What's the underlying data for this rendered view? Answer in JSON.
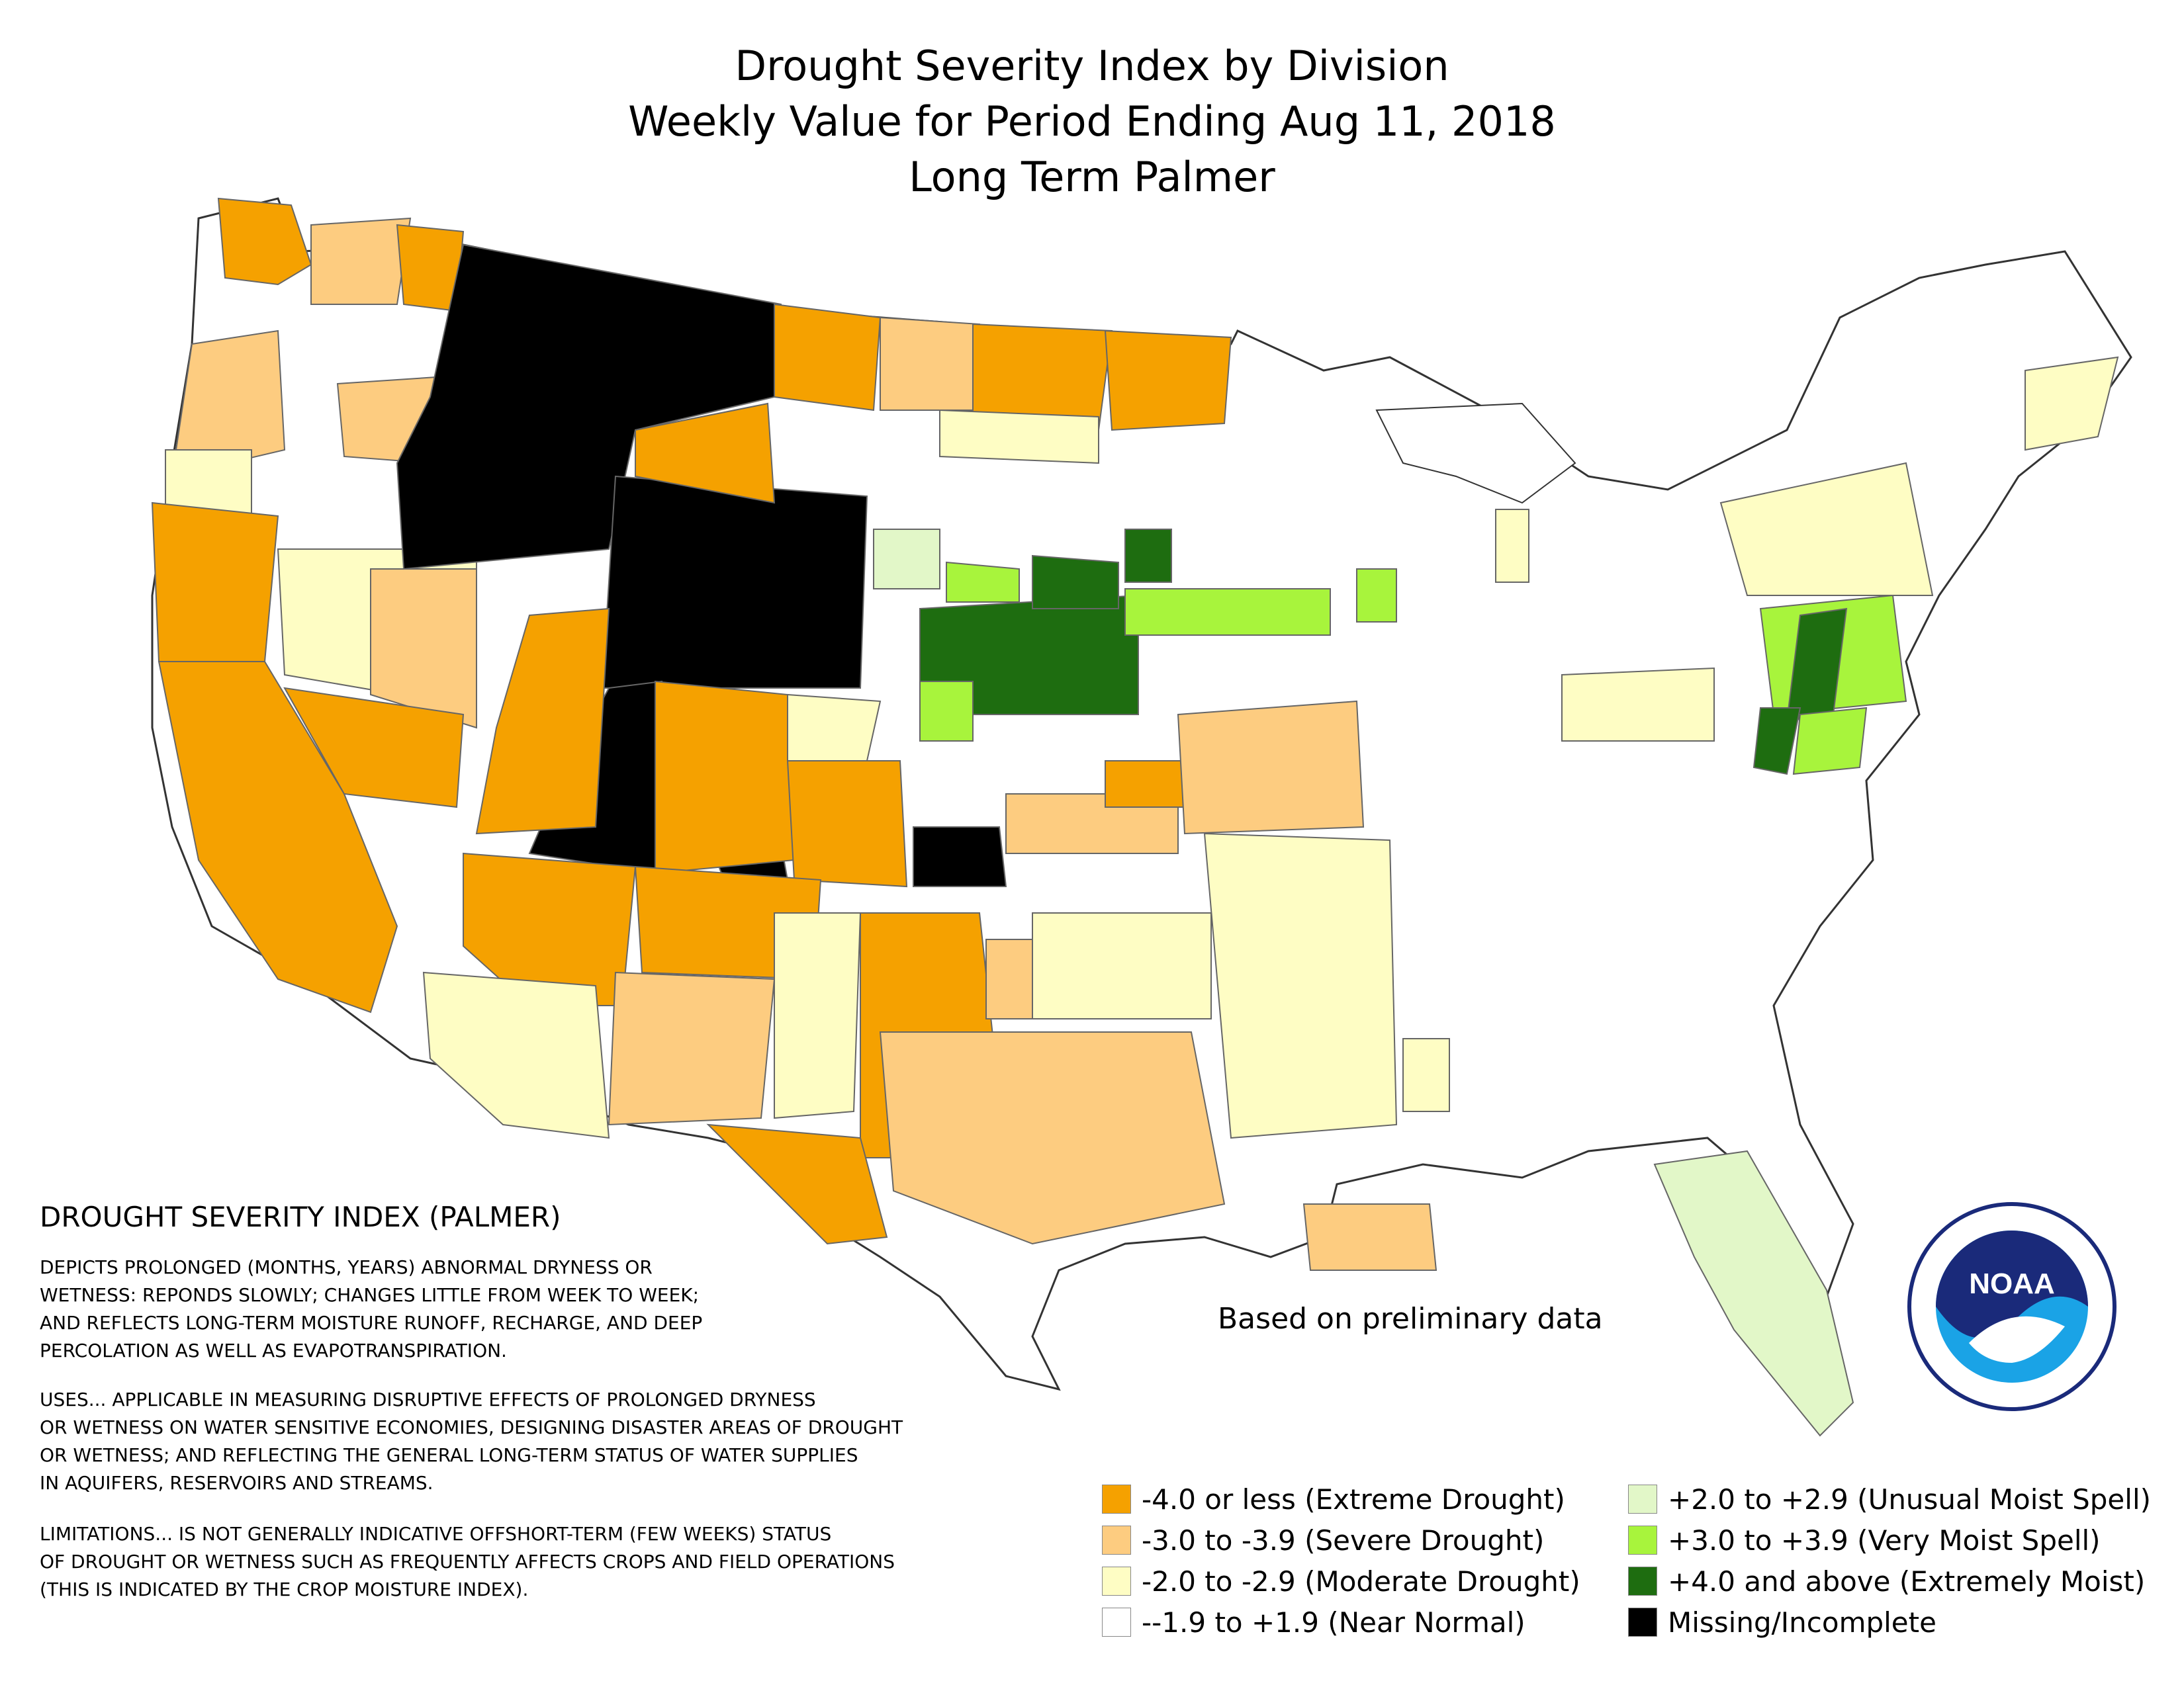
{
  "title": {
    "line1": "Drought Severity Index by Division",
    "line2": "Weekly Value for Period Ending Aug 11, 2018",
    "line3": "Long Term Palmer"
  },
  "description": {
    "heading": "DROUGHT SEVERITY INDEX (PALMER)",
    "para1": [
      "DEPICTS PROLONGED (MONTHS, YEARS) ABNORMAL DRYNESS OR",
      "WETNESS: REPONDS SLOWLY; CHANGES LITTLE FROM WEEK TO WEEK;",
      "AND REFLECTS LONG-TERM MOISTURE RUNOFF, RECHARGE, AND DEEP",
      "PERCOLATION AS WELL AS EVAPOTRANSPIRATION."
    ],
    "para2": [
      "USES... APPLICABLE IN MEASURING DISRUPTIVE EFFECTS OF PROLONGED DRYNESS",
      "OR WETNESS ON WATER SENSITIVE ECONOMIES, DESIGNING DISASTER AREAS OF DROUGHT",
      "OR WETNESS; AND REFLECTING THE GENERAL LONG-TERM STATUS OF WATER SUPPLIES",
      "IN AQUIFERS, RESERVOIRS AND STREAMS."
    ],
    "para3": [
      "LIMITATIONS... IS NOT GENERALLY INDICATIVE OFFSHORT-TERM (FEW WEEKS) STATUS",
      "OF DROUGHT OR WETNESS SUCH AS FREQUENTLY AFFECTS CROPS AND FIELD OPERATIONS",
      "(THIS IS INDICATED BY THE CROP MOISTURE INDEX)."
    ]
  },
  "note": "Based on preliminary data",
  "legend": [
    {
      "label": "-4.0 or less (Extreme Drought)",
      "color": "#f5a100"
    },
    {
      "label": "-3.0 to -3.9 (Severe Drought)",
      "color": "#fdcc80"
    },
    {
      "label": "-2.0 to -2.9 (Moderate Drought)",
      "color": "#fefdc4"
    },
    {
      "label": "--1.9 to +1.9 (Near Normal)",
      "color": "#ffffff"
    },
    {
      "label": "+2.0 to +2.9 (Unusual Moist Spell)",
      "color": "#e2f7c8"
    },
    {
      "label": "+3.0 to +3.9 (Very Moist Spell)",
      "color": "#a8f43c"
    },
    {
      "label": "+4.0 and above (Extremely Moist)",
      "color": "#1e6d10"
    },
    {
      "label": "Missing/Incomplete",
      "color": "#000000"
    }
  ],
  "logo_text": "NOAA"
}
